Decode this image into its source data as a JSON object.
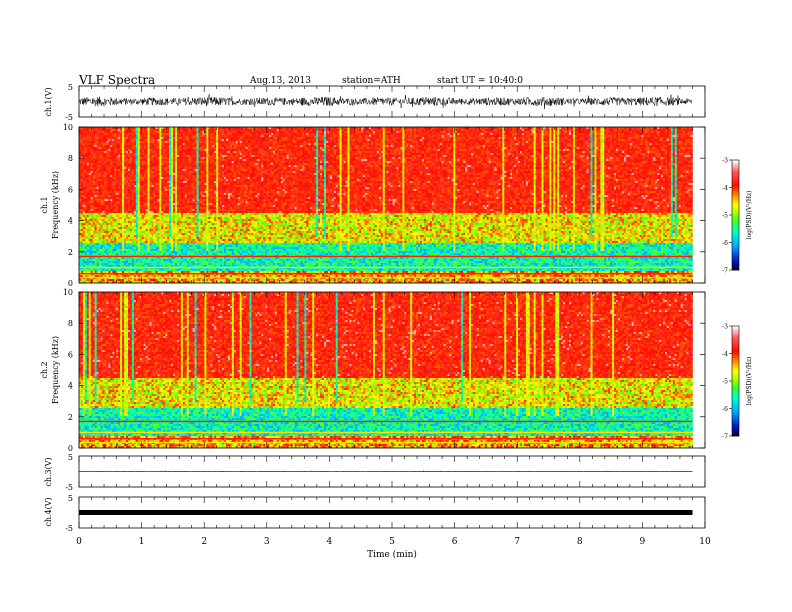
{
  "header": {
    "title": "VLF  Spectra",
    "date": "Aug.13, 2013",
    "station": "station=ATH",
    "start": "start  UT  =   10:40:0"
  },
  "panels": {
    "ch1_wave": {
      "ylabel": "ch.1(V)",
      "ticks": [
        "5",
        "-5"
      ]
    },
    "ch1_spec": {
      "ylabel": "ch.1",
      "ylabel2": "Frequency  (kHz)",
      "ticks": [
        "10",
        "8",
        "6",
        "4",
        "2",
        "0"
      ]
    },
    "ch2_spec": {
      "ylabel": "ch.2",
      "ylabel2": "Frequency  (kHz)",
      "ticks": [
        "10",
        "8",
        "6",
        "4",
        "2",
        "0"
      ]
    },
    "ch3_wave": {
      "ylabel": "ch.3(V)",
      "ticks": [
        "5",
        "-5"
      ]
    },
    "ch4_wave": {
      "ylabel": "ch.4(V)",
      "ticks": [
        "5",
        "-5"
      ]
    }
  },
  "colorbar": {
    "label": "log(PSD)(V²/Hz)",
    "ticks": [
      "-3",
      "-4",
      "-5",
      "-6",
      "-7"
    ],
    "colors": [
      "#ffffff",
      "#ff4040",
      "#ff0000",
      "#ff8800",
      "#ffff00",
      "#88ff00",
      "#00ff44",
      "#00ffcc",
      "#00aaff",
      "#0022cc",
      "#000033"
    ]
  },
  "xaxis": {
    "label": "Time  (min)",
    "ticks": [
      "0",
      "1",
      "2",
      "3",
      "4",
      "5",
      "6",
      "7",
      "8",
      "9",
      "10"
    ]
  },
  "chart_data": {
    "type": "heatmap",
    "title": "VLF  Spectra",
    "xlabel": "Time  (min)",
    "xlim": [
      0,
      10
    ],
    "data_end_min": 9.8,
    "panels": [
      {
        "name": "ch.1(V)",
        "type": "line",
        "ylim": [
          -5,
          5
        ],
        "description_amplitude_V": 1.2
      },
      {
        "name": "ch.1",
        "type": "heatmap",
        "ylabel": "Frequency  (kHz)",
        "ylim": [
          0,
          10
        ],
        "zlabel": "log(PSD)(V²/Hz)",
        "zlim": [
          -7,
          -3
        ]
      },
      {
        "name": "ch.2",
        "type": "heatmap",
        "ylabel": "Frequency  (kHz)",
        "ylim": [
          0,
          10
        ],
        "zlabel": "log(PSD)(V²/Hz)",
        "zlim": [
          -7,
          -3
        ]
      },
      {
        "name": "ch.3(V)",
        "type": "line",
        "ylim": [
          -5,
          5
        ],
        "description_amplitude_V": 0.05
      },
      {
        "name": "ch.4(V)",
        "type": "line",
        "ylim": [
          -5,
          5
        ],
        "description_amplitude_V": 0.1
      }
    ]
  }
}
